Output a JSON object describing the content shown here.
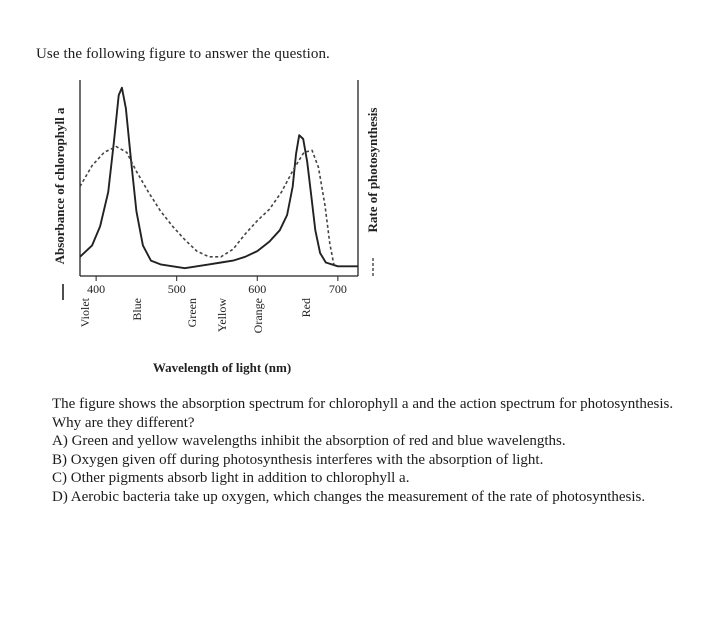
{
  "intro_text": "Use the following figure to answer the question.",
  "chart_data": {
    "type": "line",
    "xlabel": "Wavelength of light (nm)",
    "ylabel_left": "Absorbance of chlorophyll a",
    "ylabel_right": "Rate of photosynthesis",
    "x_ticks": [
      "400",
      "500",
      "600",
      "700"
    ],
    "xlim": [
      380,
      725
    ],
    "color_bands": [
      "Violet",
      "Blue",
      "Green",
      "Yellow",
      "Orange",
      "Red"
    ],
    "y_ticks_shown": false,
    "grid": false,
    "series": [
      {
        "name": "Absorbance of chlorophyll a",
        "style": "solid",
        "points": [
          [
            380,
            0.08
          ],
          [
            395,
            0.14
          ],
          [
            405,
            0.24
          ],
          [
            415,
            0.42
          ],
          [
            422,
            0.68
          ],
          [
            428,
            0.93
          ],
          [
            432,
            0.97
          ],
          [
            437,
            0.86
          ],
          [
            443,
            0.6
          ],
          [
            450,
            0.32
          ],
          [
            458,
            0.14
          ],
          [
            468,
            0.06
          ],
          [
            480,
            0.04
          ],
          [
            495,
            0.03
          ],
          [
            510,
            0.02
          ],
          [
            525,
            0.03
          ],
          [
            540,
            0.04
          ],
          [
            555,
            0.05
          ],
          [
            570,
            0.06
          ],
          [
            585,
            0.08
          ],
          [
            600,
            0.11
          ],
          [
            615,
            0.16
          ],
          [
            628,
            0.22
          ],
          [
            637,
            0.3
          ],
          [
            644,
            0.45
          ],
          [
            648,
            0.62
          ],
          [
            652,
            0.72
          ],
          [
            657,
            0.7
          ],
          [
            662,
            0.58
          ],
          [
            667,
            0.4
          ],
          [
            672,
            0.22
          ],
          [
            678,
            0.1
          ],
          [
            685,
            0.05
          ],
          [
            700,
            0.03
          ],
          [
            725,
            0.03
          ]
        ]
      },
      {
        "name": "Rate of photosynthesis",
        "style": "dashed",
        "points": [
          [
            380,
            0.45
          ],
          [
            395,
            0.56
          ],
          [
            410,
            0.63
          ],
          [
            425,
            0.66
          ],
          [
            438,
            0.63
          ],
          [
            450,
            0.53
          ],
          [
            465,
            0.42
          ],
          [
            480,
            0.32
          ],
          [
            495,
            0.24
          ],
          [
            510,
            0.17
          ],
          [
            525,
            0.11
          ],
          [
            540,
            0.08
          ],
          [
            555,
            0.08
          ],
          [
            570,
            0.12
          ],
          [
            585,
            0.2
          ],
          [
            600,
            0.27
          ],
          [
            615,
            0.33
          ],
          [
            630,
            0.42
          ],
          [
            645,
            0.54
          ],
          [
            658,
            0.63
          ],
          [
            668,
            0.64
          ],
          [
            676,
            0.55
          ],
          [
            684,
            0.35
          ],
          [
            690,
            0.15
          ],
          [
            695,
            0.04
          ]
        ]
      }
    ]
  },
  "question": {
    "stem": "The figure shows the absorption spectrum for chlorophyll a and the action spectrum for photosynthesis. Why are they different?",
    "options": [
      "A) Green and yellow wavelengths inhibit the absorption of red and blue wavelengths.",
      "B) Oxygen given off during photosynthesis interferes with the absorption of light.",
      "C) Other pigments absorb light in addition to chlorophyll a.",
      "D) Aerobic bacteria take up oxygen, which changes the measurement of the rate of photosynthesis."
    ]
  }
}
